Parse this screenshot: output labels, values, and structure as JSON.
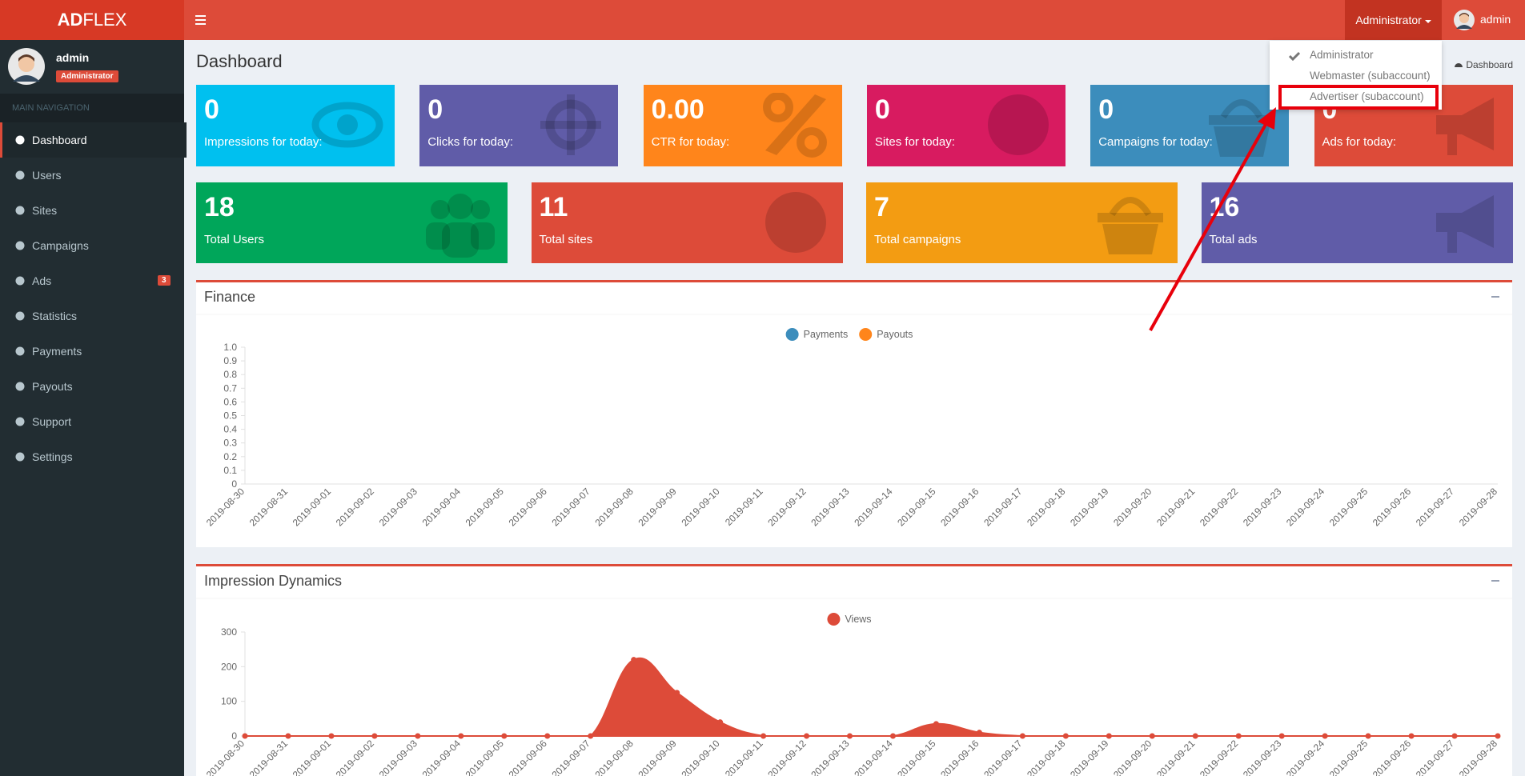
{
  "brand": {
    "bold": "AD",
    "light": "FLEX"
  },
  "topbar": {
    "role_menu": "Administrator",
    "user": "admin"
  },
  "role_dropdown": {
    "items": [
      "Administrator",
      "Webmaster (subaccount)",
      "Advertiser (subaccount)"
    ]
  },
  "sidebar": {
    "user": {
      "name": "admin",
      "role": "Administrator"
    },
    "header": "MAIN NAVIGATION",
    "items": [
      {
        "label": "Dashboard"
      },
      {
        "label": "Users"
      },
      {
        "label": "Sites"
      },
      {
        "label": "Campaigns"
      },
      {
        "label": "Ads",
        "badge": 3
      },
      {
        "label": "Statistics"
      },
      {
        "label": "Payments"
      },
      {
        "label": "Payouts"
      },
      {
        "label": "Support"
      },
      {
        "label": "Settings"
      }
    ]
  },
  "page": {
    "title": "Dashboard",
    "breadcrumb": "Dashboard"
  },
  "stats_today": [
    {
      "value": 0,
      "label": "Impressions for today:",
      "color": "#00c0ef"
    },
    {
      "value": 0,
      "label": "Clicks for today:",
      "color": "#605ca8"
    },
    {
      "value": "0.00",
      "label": "CTR for today:",
      "color": "#ff851b"
    },
    {
      "value": 0,
      "label": "Sites for today:",
      "color": "#d81b60"
    },
    {
      "value": 0,
      "label": "Campaigns for today:",
      "color": "#3c8dbc"
    },
    {
      "value": 0,
      "label": "Ads for today:",
      "color": "#dd4b39"
    }
  ],
  "totals": [
    {
      "value": 18,
      "label": "Total Users",
      "color": "#00a65a"
    },
    {
      "value": 11,
      "label": "Total sites",
      "color": "#dd4b39"
    },
    {
      "value": 7,
      "label": "Total campaigns",
      "color": "#f39c12"
    },
    {
      "value": 16,
      "label": "Total ads",
      "color": "#605ca8"
    }
  ],
  "chart_data": [
    {
      "type": "line",
      "title": "Finance",
      "categories": [
        "2019-08-30",
        "2019-08-31",
        "2019-09-01",
        "2019-09-02",
        "2019-09-03",
        "2019-09-04",
        "2019-09-05",
        "2019-09-06",
        "2019-09-07",
        "2019-09-08",
        "2019-09-09",
        "2019-09-10",
        "2019-09-11",
        "2019-09-12",
        "2019-09-13",
        "2019-09-14",
        "2019-09-15",
        "2019-09-16",
        "2019-09-17",
        "2019-09-18",
        "2019-09-19",
        "2019-09-20",
        "2019-09-21",
        "2019-09-22",
        "2019-09-23",
        "2019-09-24",
        "2019-09-25",
        "2019-09-26",
        "2019-09-27",
        "2019-09-28"
      ],
      "series": [
        {
          "name": "Payments",
          "color": "#3c8dbc"
        },
        {
          "name": "Payouts",
          "color": "#ff851b"
        }
      ],
      "ylim": [
        0,
        1
      ],
      "yticks": [
        0,
        0.1,
        0.2,
        0.3,
        0.4,
        0.5,
        0.6,
        0.7,
        0.8,
        0.9,
        {
          "value": 1,
          "label": "1.0"
        }
      ]
    },
    {
      "type": "area",
      "title": "Impression Dynamics",
      "categories": [
        "2019-08-30",
        "2019-08-31",
        "2019-09-01",
        "2019-09-02",
        "2019-09-03",
        "2019-09-04",
        "2019-09-05",
        "2019-09-06",
        "2019-09-07",
        "2019-09-08",
        "2019-09-09",
        "2019-09-10",
        "2019-09-11",
        "2019-09-12",
        "2019-09-13",
        "2019-09-14",
        "2019-09-15",
        "2019-09-16",
        "2019-09-17",
        "2019-09-18",
        "2019-09-19",
        "2019-09-20",
        "2019-09-21",
        "2019-09-22",
        "2019-09-23",
        "2019-09-24",
        "2019-09-25",
        "2019-09-26",
        "2019-09-27",
        "2019-09-28"
      ],
      "series": [
        {
          "name": "Views",
          "color": "#dd4b39",
          "values": [
            0,
            0,
            0,
            0,
            0,
            0,
            0,
            0,
            0,
            220,
            125,
            40,
            0,
            0,
            0,
            0,
            35,
            10,
            0,
            0,
            0,
            0,
            0,
            0,
            0,
            0,
            0,
            0,
            0,
            0
          ]
        }
      ],
      "ylim": [
        0,
        300
      ],
      "yticks": [
        0,
        100,
        200,
        300
      ]
    }
  ]
}
